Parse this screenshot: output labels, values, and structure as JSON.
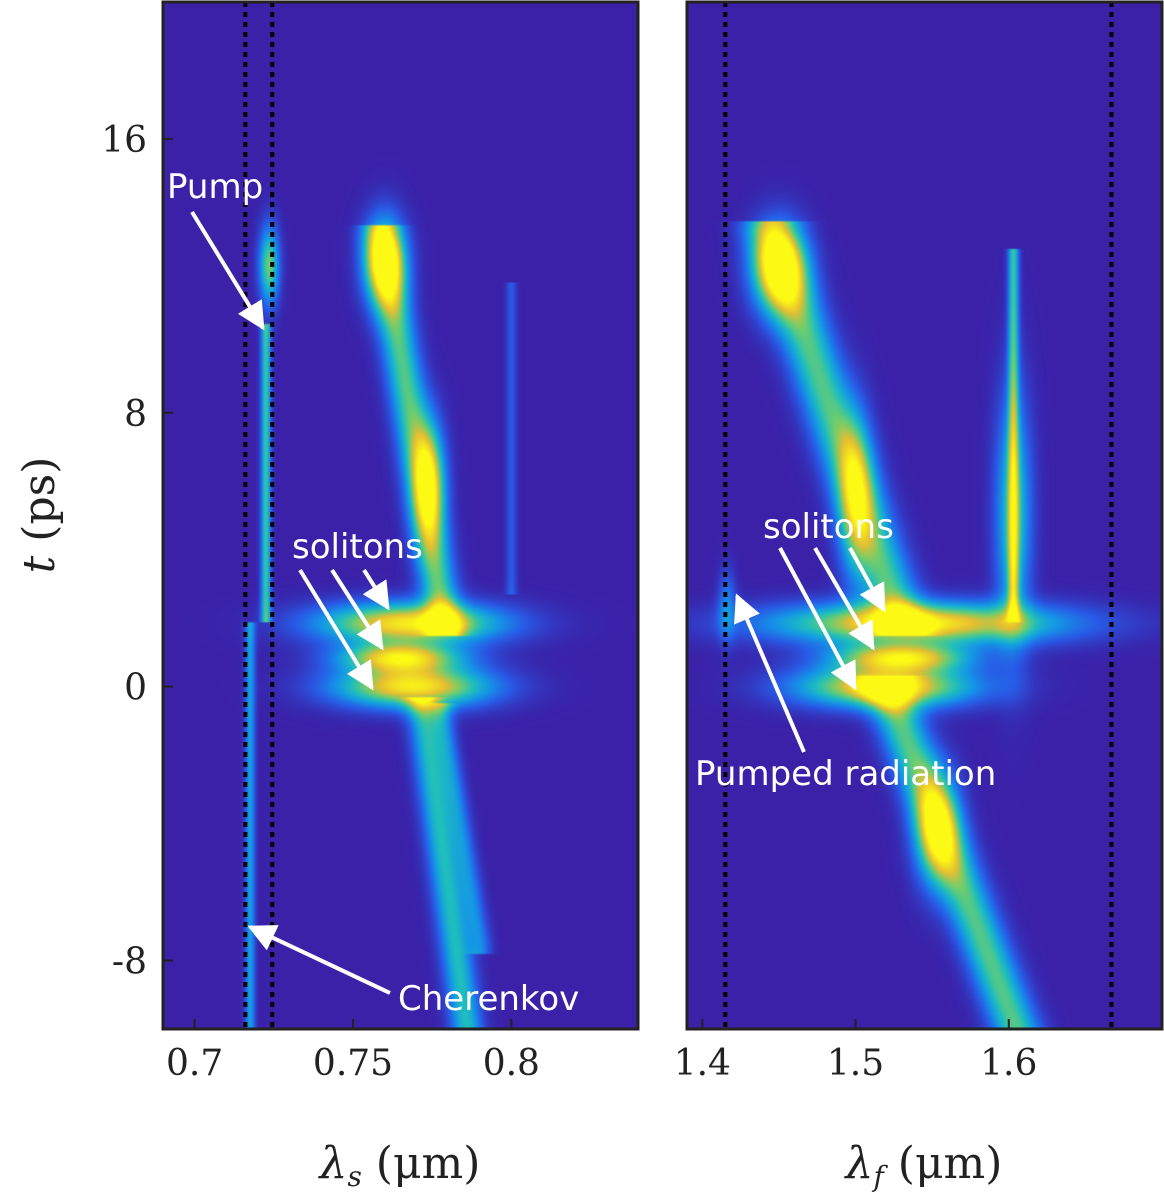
{
  "chart_data": [
    {
      "type": "heatmap",
      "panel": "left",
      "title": "",
      "xlabel_symbol": "λ",
      "xlabel_sub": "s",
      "xlabel_unit": " (μm)",
      "ylabel_symbol": "t",
      "ylabel_unit": " (ps)",
      "xlim": [
        0.69,
        0.84
      ],
      "ylim": [
        -10,
        20
      ],
      "xticks": [
        0.7,
        0.75,
        0.8
      ],
      "xtick_labels": [
        "0.7",
        "0.75",
        "0.8"
      ],
      "yticks": [
        -8,
        0,
        8,
        16
      ],
      "ytick_labels": [
        "-8",
        "0",
        "8",
        "16"
      ],
      "vlines_dotted": [
        0.716,
        0.7245
      ],
      "background": "#3a21a8",
      "features": [
        {
          "name": "pump-track",
          "kind": "vline",
          "x": 0.7225,
          "t0": 1.9,
          "t1": 10.6,
          "peak": 0.55
        },
        {
          "name": "pump-blob",
          "kind": "blob",
          "x": 0.7235,
          "t": 12.3,
          "sx": 0.0022,
          "st": 0.8,
          "peak": 0.65
        },
        {
          "name": "cherenkov-track",
          "kind": "vline",
          "x": 0.7175,
          "t0": -10,
          "t1": 1.9,
          "peak": 0.38
        },
        {
          "name": "soliton-upper",
          "kind": "blob",
          "x": 0.768,
          "t": 1.85,
          "sx": 0.02,
          "st": 0.42,
          "peak": 0.95
        },
        {
          "name": "soliton-middle",
          "kind": "blob",
          "x": 0.765,
          "t": 0.85,
          "sx": 0.013,
          "st": 0.3,
          "peak": 0.85
        },
        {
          "name": "soliton-lower",
          "kind": "blob",
          "x": 0.769,
          "t": 0.0,
          "sx": 0.017,
          "st": 0.42,
          "peak": 0.95
        },
        {
          "name": "upper-branch",
          "kind": "seg",
          "x0": 0.759,
          "t0": 13.2,
          "x1": 0.779,
          "t1": 1.8,
          "width": 0.004,
          "peak": 0.6
        },
        {
          "name": "upper-branch-head",
          "kind": "blob",
          "x": 0.76,
          "t": 12.4,
          "sx": 0.0045,
          "st": 0.9,
          "peak": 0.85
        },
        {
          "name": "upper-branch-mid",
          "kind": "blob",
          "x": 0.774,
          "t": 6.0,
          "sx": 0.0035,
          "st": 1.2,
          "peak": 0.72
        },
        {
          "name": "lower-branch",
          "kind": "seg",
          "x0": 0.772,
          "t0": -0.6,
          "x1": 0.786,
          "t1": -10,
          "width": 0.0035,
          "peak": 0.5
        },
        {
          "name": "lower-branch-2",
          "kind": "seg",
          "x0": 0.778,
          "t0": -0.8,
          "x1": 0.79,
          "t1": -7.5,
          "width": 0.0025,
          "peak": 0.3
        },
        {
          "name": "faint-arc",
          "kind": "seg",
          "x0": 0.8,
          "t0": 11.5,
          "x1": 0.8,
          "t1": 3.0,
          "width": 0.0012,
          "peak": 0.18
        }
      ]
    },
    {
      "type": "heatmap",
      "panel": "right",
      "title": "",
      "xlabel_symbol": "λ",
      "xlabel_sub": "f",
      "xlabel_unit": " (μm)",
      "xlim": [
        1.39,
        1.7
      ],
      "ylim": [
        -10,
        20
      ],
      "xticks": [
        1.4,
        1.5,
        1.6
      ],
      "xtick_labels": [
        "1.4",
        "1.5",
        "1.6"
      ],
      "vlines_dotted": [
        1.415,
        1.667
      ],
      "background": "#3a21a8",
      "features": [
        {
          "name": "soliton-upper",
          "kind": "blob",
          "x": 1.54,
          "t": 1.85,
          "sx": 0.065,
          "st": 0.42,
          "peak": 0.95
        },
        {
          "name": "soliton-middle",
          "kind": "blob",
          "x": 1.53,
          "t": 0.85,
          "sx": 0.03,
          "st": 0.3,
          "peak": 0.85
        },
        {
          "name": "soliton-lower",
          "kind": "blob",
          "x": 1.52,
          "t": 0.0,
          "sx": 0.04,
          "st": 0.42,
          "peak": 0.95
        },
        {
          "name": "steep-branch",
          "kind": "seg",
          "x0": 1.445,
          "t0": 13.3,
          "x1": 1.53,
          "t1": 1.8,
          "width": 0.012,
          "peak": 0.6
        },
        {
          "name": "steep-branch-head",
          "kind": "blob",
          "x": 1.45,
          "t": 12.2,
          "sx": 0.012,
          "st": 0.9,
          "peak": 0.85
        },
        {
          "name": "steep-branch-mid",
          "kind": "blob",
          "x": 1.5,
          "t": 5.5,
          "sx": 0.008,
          "st": 1.6,
          "peak": 0.55
        },
        {
          "name": "vertical-branch",
          "kind": "vline",
          "x": 1.603,
          "t0": 1.9,
          "t1": 12.8,
          "peak": 0.55
        },
        {
          "name": "vertical-branch-blob",
          "kind": "blob",
          "x": 1.603,
          "t": 5.0,
          "sx": 0.008,
          "st": 2.5,
          "peak": 0.55
        },
        {
          "name": "lower-tail",
          "kind": "seg",
          "x0": 1.52,
          "t0": 0.0,
          "x1": 1.605,
          "t1": -10,
          "width": 0.011,
          "peak": 0.6
        },
        {
          "name": "lower-tail-blob",
          "kind": "blob",
          "x": 1.553,
          "t": -4.2,
          "sx": 0.01,
          "st": 1.1,
          "peak": 0.72
        },
        {
          "name": "pumped-radiation",
          "kind": "blob",
          "x": 1.416,
          "t": 2.4,
          "sx": 0.004,
          "st": 0.7,
          "peak": 0.28
        }
      ]
    }
  ],
  "annotations": {
    "pump": "Pump",
    "cherenkov": "Cherenkov",
    "solitons_left": "solitons",
    "solitons_right": "solitons",
    "pumped_radiation": "Pumped radiation"
  }
}
